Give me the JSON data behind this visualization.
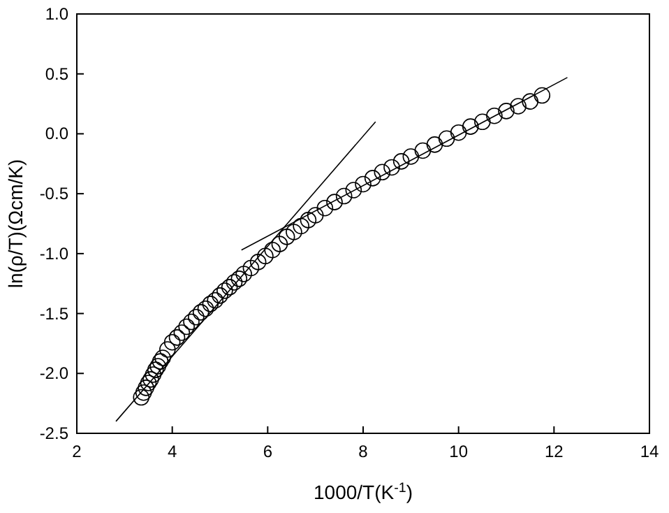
{
  "chart_data": {
    "type": "scatter",
    "xlabel": "1000/T(K$^{-1}$)",
    "ylabel": "ln(ρ/T)(Ωcm/K)",
    "xlim": [
      2,
      14
    ],
    "ylim": [
      -2.5,
      1
    ],
    "xticks": [
      2,
      4,
      6,
      8,
      10,
      12,
      14
    ],
    "yticks": [
      {
        "value": -2.5,
        "label": "-2.5"
      },
      {
        "value": -2,
        "label": "-2.0"
      },
      {
        "value": -1.5,
        "label": "-1.5"
      },
      {
        "value": -1,
        "label": "-1.0"
      },
      {
        "value": -0.5,
        "label": "-0.5"
      },
      {
        "value": 0,
        "label": "0.0"
      },
      {
        "value": 0.5,
        "label": "0.5"
      },
      {
        "value": 1,
        "label": "1.0"
      }
    ],
    "grid": false,
    "marker": "circle",
    "series": [
      {
        "color": "#000000",
        "x": [
          3.35,
          3.4,
          3.45,
          3.5,
          3.55,
          3.6,
          3.65,
          3.7,
          3.75,
          3.8,
          3.9,
          4.0,
          4.1,
          4.2,
          4.3,
          4.4,
          4.5,
          4.6,
          4.7,
          4.8,
          4.9,
          5.0,
          5.1,
          5.2,
          5.3,
          5.4,
          5.5,
          5.65,
          5.8,
          5.95,
          6.1,
          6.25,
          6.4,
          6.55,
          6.7,
          6.85,
          7.0,
          7.2,
          7.4,
          7.6,
          7.8,
          8.0,
          8.2,
          8.4,
          8.6,
          8.8,
          9.0,
          9.25,
          9.5,
          9.75,
          10.0,
          10.25,
          10.5,
          10.75,
          11.0,
          11.25,
          11.5,
          11.75
        ],
        "values": [
          -2.2,
          -2.16,
          -2.12,
          -2.08,
          -2.05,
          -2.01,
          -1.97,
          -1.94,
          -1.9,
          -1.87,
          -1.8,
          -1.74,
          -1.7,
          -1.66,
          -1.61,
          -1.57,
          -1.53,
          -1.49,
          -1.46,
          -1.42,
          -1.39,
          -1.35,
          -1.31,
          -1.28,
          -1.24,
          -1.21,
          -1.17,
          -1.12,
          -1.07,
          -1.02,
          -0.97,
          -0.92,
          -0.86,
          -0.82,
          -0.77,
          -0.72,
          -0.68,
          -0.62,
          -0.57,
          -0.52,
          -0.47,
          -0.42,
          -0.37,
          -0.32,
          -0.28,
          -0.23,
          -0.19,
          -0.14,
          -0.09,
          -0.04,
          0.01,
          0.06,
          0.1,
          0.15,
          0.19,
          0.23,
          0.27,
          0.32
        ]
      },
      {
        "type": "line",
        "marker": "none",
        "color": "#000000",
        "x": [
          2.82,
          8.26
        ],
        "values": [
          -2.4,
          0.1
        ]
      },
      {
        "type": "line",
        "marker": "none",
        "color": "#000000",
        "x": [
          5.45,
          12.28
        ],
        "values": [
          -0.97,
          0.47
        ]
      }
    ]
  }
}
